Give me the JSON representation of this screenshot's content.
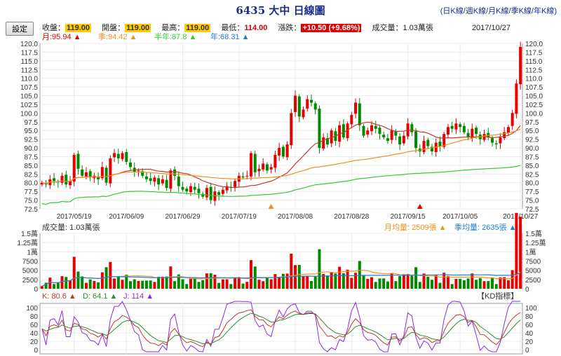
{
  "header": {
    "title": "6435 大中 日線圖",
    "tabs": [
      "日K線",
      "週K線",
      "月K線",
      "季K線",
      "年K線"
    ],
    "settings_label": "設定"
  },
  "quote": {
    "close_label": "收盤：",
    "close": "119.00",
    "open_label": "開盤：",
    "open": "119.00",
    "high_label": "最高：",
    "high": "119.00",
    "low_label": "最低：",
    "low": "114.00",
    "change_label": "漲跌：",
    "change": "+10.50 (+9.68%)",
    "volume_label": "成交量：",
    "volume": "1.03萬張",
    "date": "2017/10/27"
  },
  "colors": {
    "up": "#e60000",
    "down": "#008a00",
    "month_ma": "#c0392b",
    "quarter_ma": "#f0901f",
    "half_ma": "#33cc33",
    "year_ma": "#1e7fd0",
    "k": "#c0392b",
    "d": "#2e8b2e",
    "j": "#8a2be2"
  },
  "chart_data": [
    {
      "type": "candlestick",
      "legend": [
        {
          "label": "月:95.94",
          "arrow": "▲",
          "color": "#e60000"
        },
        {
          "label": "季:94.42",
          "arrow": "▲",
          "color": "#f0901f"
        },
        {
          "label": "半年:87.8",
          "arrow": "▲",
          "color": "#33cc33"
        },
        {
          "label": "年:68.31",
          "arrow": "▲",
          "color": "#1e7fd0"
        }
      ],
      "ylim": [
        72.5,
        120.0
      ],
      "yticks": [
        "72.5",
        "75.0",
        "77.5",
        "80.0",
        "82.5",
        "85.0",
        "87.5",
        "90.0",
        "92.5",
        "95.0",
        "97.5",
        "100.0",
        "102.5",
        "105.0",
        "107.5",
        "110.0",
        "112.5",
        "115.0",
        "117.5",
        "120.0"
      ],
      "xticks": [
        {
          "i": 8,
          "label": "2017/05/19"
        },
        {
          "i": 21,
          "label": "2017/06/09"
        },
        {
          "i": 35,
          "label": "2017/06/29"
        },
        {
          "i": 49,
          "label": "2017/07/19"
        },
        {
          "i": 63,
          "label": "2017/08/08"
        },
        {
          "i": 77,
          "label": "2017/08/28"
        },
        {
          "i": 91,
          "label": "2017/09/15"
        },
        {
          "i": 104,
          "label": "2017/10/05"
        },
        {
          "i": 119,
          "label": "2017/10/27"
        }
      ],
      "markers": [
        {
          "i": 57,
          "color": "#f0901f"
        },
        {
          "i": 94,
          "color": "#e60000"
        }
      ],
      "closes": [
        80.0,
        79.5,
        81.0,
        80.5,
        80.2,
        82.0,
        79.5,
        80.5,
        88.0,
        84.0,
        82.0,
        83.0,
        81.5,
        82.0,
        81.0,
        84.5,
        80.0,
        87.0,
        88.5,
        87.0,
        88.5,
        86.0,
        84.5,
        83.0,
        83.5,
        82.0,
        81.0,
        80.5,
        81.5,
        79.5,
        81.0,
        78.5,
        83.5,
        82.0,
        79.0,
        78.0,
        77.5,
        79.0,
        78.0,
        77.0,
        76.0,
        78.5,
        75.0,
        77.5,
        76.5,
        78.0,
        79.0,
        78.5,
        80.5,
        82.0,
        81.5,
        82.0,
        88.5,
        83.0,
        84.0,
        85.5,
        83.5,
        84.5,
        88.0,
        90.0,
        87.5,
        91.0,
        100.0,
        105.0,
        99.0,
        101.0,
        104.0,
        103.0,
        101.0,
        90.0,
        93.0,
        91.0,
        95.0,
        92.0,
        96.5,
        93.0,
        97.0,
        99.5,
        103.0,
        96.5,
        93.5,
        95.0,
        96.5,
        95.5,
        94.0,
        93.0,
        92.0,
        95.0,
        93.5,
        91.0,
        93.5,
        97.0,
        94.5,
        90.0,
        89.0,
        92.0,
        90.5,
        89.0,
        91.5,
        90.5,
        94.0,
        96.0,
        95.5,
        97.0,
        96.0,
        94.5,
        93.0,
        95.5,
        94.0,
        92.5,
        94.0,
        93.0,
        91.5,
        91.0,
        93.0,
        94.5,
        96.0,
        100.0,
        108.5,
        119.0
      ],
      "volume": {
        "title": "成交量: 1.03萬張",
        "ma_month": "月均量: 2509張",
        "ma_quarter": "季均量: 2635張",
        "yticks": [
          "0",
          "2500",
          "5000",
          "7500",
          "1萬",
          "1.25萬",
          "1.5萬"
        ]
      },
      "kd": {
        "title": "【KD指標】",
        "k": "K: 80.6",
        "d": "D: 64.1",
        "j": "J: 114",
        "yticks": [
          "0",
          "20",
          "40",
          "60",
          "80",
          "100"
        ]
      }
    }
  ]
}
